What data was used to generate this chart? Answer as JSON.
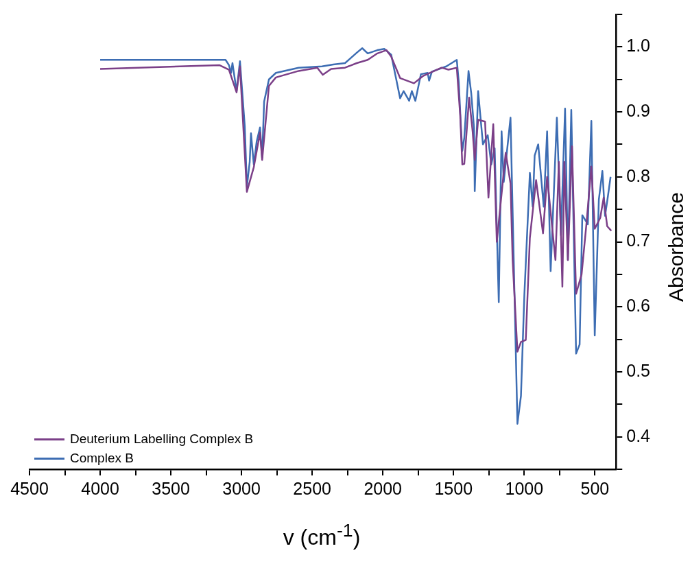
{
  "chart_data": {
    "type": "line",
    "xlabel": "v (cm$^{-1}$)",
    "ylabel": "Absorbance",
    "legend": "bottom left",
    "marker": "none",
    "xlim": [
      4500,
      350
    ],
    "xticks": [
      4500,
      {
        "value": 4250,
        "label": null
      },
      4000,
      {
        "value": 3750,
        "label": null
      },
      3500,
      {
        "value": 3250,
        "label": null
      },
      3000,
      {
        "value": 2750,
        "label": null
      },
      2500,
      {
        "value": 2250,
        "label": null
      },
      2000,
      {
        "value": 1750,
        "label": null
      },
      1500,
      {
        "value": 1250,
        "label": null
      },
      1000,
      {
        "value": 750,
        "label": null
      },
      500
    ],
    "ylim": [
      0.35,
      1.05
    ],
    "yticks": [
      {
        "value": 0.35,
        "label": null
      },
      {
        "value": 0.4,
        "label": "0.4"
      },
      {
        "value": 0.45,
        "label": null
      },
      {
        "value": 0.5,
        "label": "0.5"
      },
      {
        "value": 0.55,
        "label": null
      },
      {
        "value": 0.6,
        "label": "0.6"
      },
      {
        "value": 0.65,
        "label": null
      },
      {
        "value": 0.7,
        "label": "0.7"
      },
      {
        "value": 0.75,
        "label": null
      },
      {
        "value": 0.8,
        "label": "0.8"
      },
      {
        "value": 0.85,
        "label": null
      },
      {
        "value": 0.9,
        "label": "0.9"
      },
      {
        "value": 0.95,
        "label": null
      },
      {
        "value": 1.0,
        "label": "1.0"
      },
      {
        "value": 1.05,
        "label": null
      }
    ],
    "series": [
      {
        "name": "Deuterium Labelling Complex B",
        "color": "#7b3f88",
        "x": [
          4000,
          3157,
          3089,
          3035,
          3011,
          2962,
          2913,
          2869,
          2854,
          2806,
          2757,
          2596,
          2464,
          2425,
          2366,
          2268,
          2185,
          2107,
          2039,
          1975,
          1941,
          1878,
          1780,
          1717,
          1585,
          1536,
          1477,
          1453,
          1438,
          1424,
          1390,
          1365,
          1350,
          1326,
          1277,
          1253,
          1219,
          1194,
          1131,
          1097,
          1082,
          1048,
          1023,
          989,
          960,
          916,
          867,
          838,
          779,
          755,
          730,
          716,
          691,
          662,
          633,
          594,
          560,
          525,
          501,
          462,
          438,
          413,
          384
        ],
        "values": [
          0.966,
          0.972,
          0.965,
          0.93,
          0.97,
          0.777,
          0.815,
          0.868,
          0.826,
          0.94,
          0.953,
          0.963,
          0.968,
          0.957,
          0.966,
          0.968,
          0.975,
          0.98,
          0.99,
          0.995,
          0.985,
          0.952,
          0.944,
          0.955,
          0.968,
          0.965,
          0.968,
          0.895,
          0.819,
          0.82,
          0.922,
          0.87,
          0.826,
          0.888,
          0.885,
          0.768,
          0.881,
          0.7,
          0.837,
          0.79,
          0.672,
          0.531,
          0.546,
          0.549,
          0.706,
          0.795,
          0.713,
          0.8,
          0.672,
          0.823,
          0.631,
          0.823,
          0.672,
          0.847,
          0.62,
          0.65,
          0.727,
          0.816,
          0.72,
          0.737,
          0.768,
          0.724,
          0.717
        ]
      },
      {
        "name": "Complex B",
        "color": "#3d6db3",
        "x": [
          4000,
          3157,
          3113,
          3089,
          3074,
          3064,
          3035,
          3011,
          2977,
          2962,
          2942,
          2933,
          2913,
          2893,
          2869,
          2854,
          2840,
          2806,
          2757,
          2596,
          2430,
          2351,
          2268,
          2185,
          2146,
          2107,
          2039,
          1990,
          1941,
          1912,
          1878,
          1853,
          1814,
          1795,
          1770,
          1731,
          1683,
          1673,
          1653,
          1551,
          1477,
          1463,
          1448,
          1438,
          1424,
          1394,
          1375,
          1355,
          1350,
          1326,
          1292,
          1258,
          1233,
          1209,
          1180,
          1160,
          1145,
          1097,
          1048,
          1023,
          999,
          960,
          940,
          926,
          901,
          862,
          838,
          813,
          769,
          740,
          711,
          691,
          667,
          633,
          608,
          589,
          550,
          525,
          501,
          472,
          447,
          428,
          408,
          389
        ],
        "values": [
          0.98,
          0.98,
          0.98,
          0.972,
          0.96,
          0.975,
          0.932,
          0.978,
          0.878,
          0.785,
          0.823,
          0.867,
          0.819,
          0.854,
          0.876,
          0.829,
          0.916,
          0.95,
          0.96,
          0.968,
          0.97,
          0.973,
          0.975,
          0.991,
          0.998,
          0.99,
          0.995,
          0.997,
          0.988,
          0.957,
          0.921,
          0.932,
          0.917,
          0.932,
          0.917,
          0.958,
          0.96,
          0.948,
          0.962,
          0.97,
          0.98,
          0.946,
          0.878,
          0.84,
          0.86,
          0.963,
          0.929,
          0.875,
          0.778,
          0.932,
          0.85,
          0.864,
          0.819,
          0.844,
          0.607,
          0.87,
          0.792,
          0.891,
          0.42,
          0.463,
          0.618,
          0.806,
          0.754,
          0.833,
          0.85,
          0.754,
          0.87,
          0.655,
          0.891,
          0.71,
          0.905,
          0.672,
          0.903,
          0.528,
          0.542,
          0.741,
          0.727,
          0.886,
          0.556,
          0.765,
          0.809,
          0.74,
          0.77,
          0.8
        ]
      }
    ]
  }
}
